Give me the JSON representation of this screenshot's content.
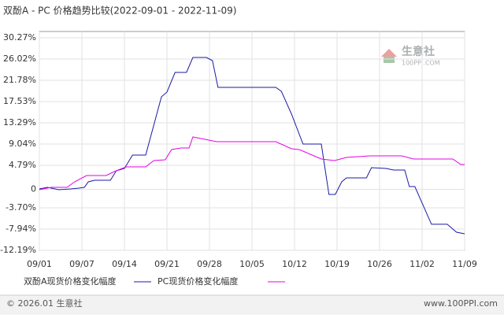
{
  "chart_data": {
    "type": "line",
    "title": "双酚A - PC 价格趋势比较(2022-09-01 - 2022-11-09)",
    "xlim": [
      0,
      10
    ],
    "xticks": [
      {
        "value": 0,
        "label": "09/01"
      },
      {
        "value": 1,
        "label": "09/07"
      },
      {
        "value": 2,
        "label": "09/14"
      },
      {
        "value": 3,
        "label": "09/21"
      },
      {
        "value": 4,
        "label": "09/28"
      },
      {
        "value": 5,
        "label": "10/05"
      },
      {
        "value": 6,
        "label": "10/12"
      },
      {
        "value": 7,
        "label": "10/19"
      },
      {
        "value": 8,
        "label": "10/26"
      },
      {
        "value": 9,
        "label": "11/02"
      },
      {
        "value": 10,
        "label": "11/09"
      }
    ],
    "ylim": [
      -12.19,
      30.27
    ],
    "yticks": [
      {
        "value": 30.27,
        "label": "30.27%"
      },
      {
        "value": 26.02,
        "label": "26.02%"
      },
      {
        "value": 21.78,
        "label": "21.78%"
      },
      {
        "value": 17.53,
        "label": "17.53%"
      },
      {
        "value": 13.29,
        "label": "13.29%"
      },
      {
        "value": 9.04,
        "label": "9.04%"
      },
      {
        "value": 4.79,
        "label": "4.79%"
      },
      0,
      {
        "value": -3.7,
        "label": "-3.70%"
      },
      {
        "value": -7.94,
        "label": "-7.94%"
      },
      {
        "value": -12.19,
        "label": "-12.19%"
      }
    ],
    "grid": true,
    "series": [
      {
        "name": "双酚A现货价格变化幅度",
        "color": "#1a1aa8",
        "x": [
          0,
          0.19,
          0.46,
          0.74,
          0.93,
          1.06,
          1.15,
          1.3,
          1.67,
          1.81,
          2,
          2.19,
          2.5,
          2.87,
          3,
          3.19,
          3.46,
          3.61,
          3.93,
          4.07,
          4.2,
          5.56,
          5.69,
          5.93,
          6.2,
          6.63,
          6.81,
          6.96,
          7.11,
          7.22,
          7.69,
          7.81,
          8.15,
          8.33,
          8.59,
          8.7,
          8.83,
          9.22,
          9.59,
          9.81,
          10
        ],
        "values": [
          0.08,
          0.39,
          -0.08,
          0.08,
          0.23,
          0.39,
          1.49,
          1.81,
          1.81,
          3.7,
          4.17,
          6.84,
          6.84,
          18.48,
          19.42,
          23.35,
          23.35,
          26.34,
          26.34,
          25.71,
          20.36,
          20.36,
          19.58,
          15.02,
          9.04,
          9.04,
          -1.02,
          -1.02,
          1.49,
          2.28,
          2.28,
          4.32,
          4.17,
          3.85,
          3.85,
          0.55,
          0.55,
          -6.99,
          -6.99,
          -8.57,
          -8.88
        ]
      },
      {
        "name": "PC现货价格变化幅度",
        "color": "#e600e6",
        "x": [
          0,
          0.28,
          0.65,
          0.83,
          1.11,
          1.57,
          1.76,
          2.04,
          2.5,
          2.69,
          2.96,
          3.11,
          3.33,
          3.52,
          3.61,
          3.8,
          4.17,
          5.56,
          5.93,
          6.11,
          6.63,
          6.94,
          7.22,
          7.78,
          8.52,
          8.8,
          9.72,
          9.91,
          10
        ],
        "values": [
          -0.08,
          0.39,
          0.39,
          1.49,
          2.75,
          2.75,
          3.54,
          4.48,
          4.48,
          5.74,
          5.89,
          7.94,
          8.25,
          8.25,
          10.46,
          10.14,
          9.51,
          9.51,
          8.1,
          7.94,
          6.05,
          5.74,
          6.37,
          6.68,
          6.68,
          6.05,
          6.05,
          4.95,
          4.95
        ]
      }
    ],
    "watermark": [
      "生意社",
      "100PPI.COM"
    ]
  },
  "footer": {
    "left": "© 2026.01 生意社",
    "right": "www.100PPI.com"
  }
}
